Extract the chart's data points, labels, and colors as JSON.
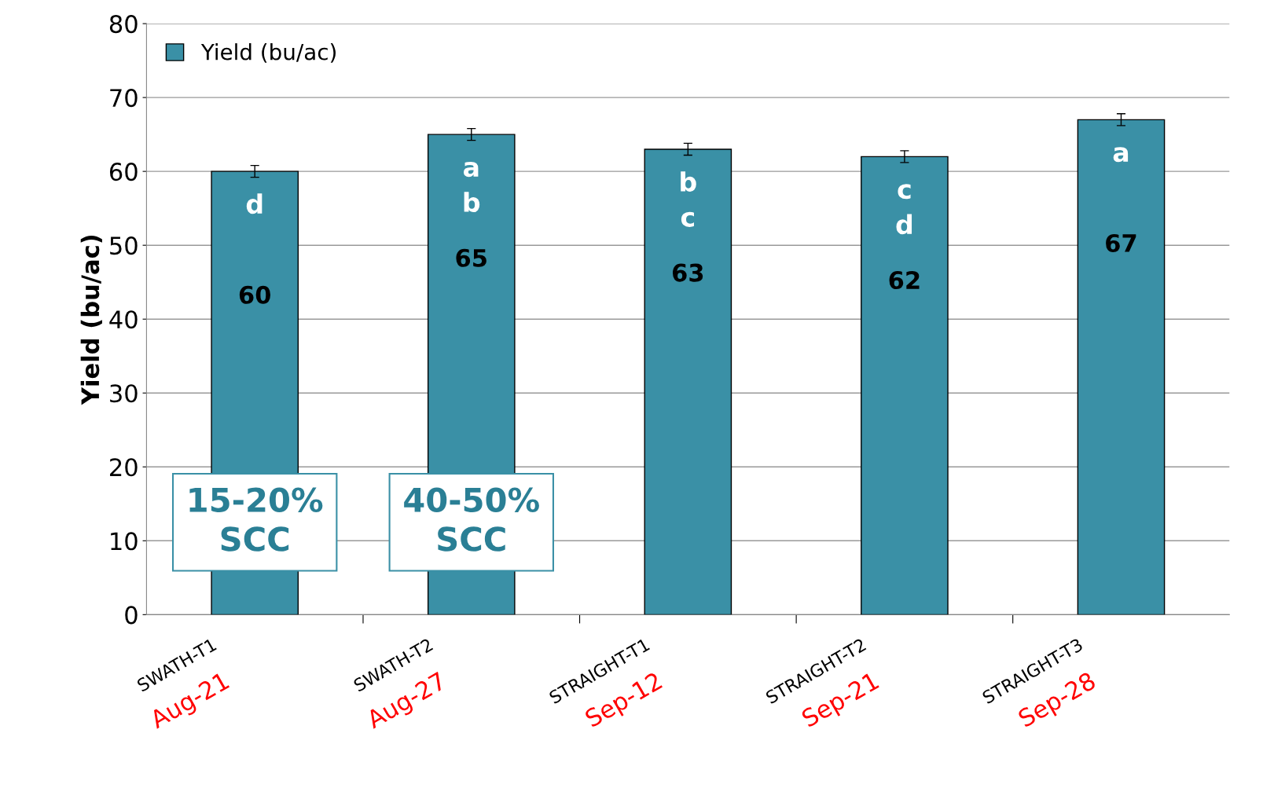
{
  "chart_data": {
    "type": "bar",
    "ylabel": "Yield (bu/ac)",
    "categories": [
      "SWATH-T1\nAug-21",
      "SWATH-T2\nAug-27",
      "STRAIGHT-T1\nSep-12",
      "STRAIGHT-T2\nSep-21",
      "STRAIGHT-T3\nSep-28"
    ],
    "series": [
      {
        "name": "Yield (bu/ac)",
        "color": "#3a90a6",
        "values": [
          60,
          65,
          63,
          62,
          67
        ],
        "errors": [
          0.8,
          0.8,
          0.8,
          0.8,
          0.8
        ]
      }
    ],
    "data_labels": true,
    "annotations": [
      "d",
      "a\nb",
      "b\nc",
      "c\nd",
      "a",
      "15-20%\nSCC",
      "40-50%\nSCC"
    ],
    "ylim": [
      0,
      80
    ],
    "yticks": [
      0,
      10,
      20,
      30,
      40,
      50,
      60,
      70,
      80
    ],
    "grid": "y",
    "legend": "top left"
  }
}
